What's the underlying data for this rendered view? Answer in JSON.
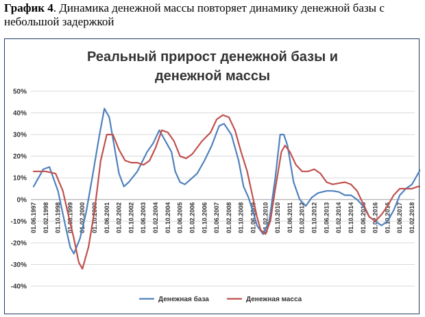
{
  "caption": {
    "bold": "График 4",
    "text": ". Динамика денежной массы повторяет динамику денежной базы с небольшой задержкой"
  },
  "chart_data": {
    "type": "line",
    "title": [
      "Реальный прирост денежной базы и",
      "денежной массы"
    ],
    "xlabel": "",
    "ylabel": "",
    "ylim": [
      -40,
      50
    ],
    "yticks": [
      "50%",
      "40%",
      "30%",
      "20%",
      "10%",
      "0%",
      "-10%",
      "-20%",
      "-30%",
      "-40%"
    ],
    "grid": true,
    "legend_position": "bottom",
    "categories": [
      "01.06.1997",
      "01.02.1998",
      "01.10.1998",
      "01.06.1999",
      "01.02.2000",
      "01.10.2000",
      "01.06.2001",
      "01.02.2002",
      "01.10.2002",
      "01.06.2003",
      "01.02.2004",
      "01.10.2004",
      "01.06.2005",
      "01.02.2006",
      "01.10.2006",
      "01.06.2007",
      "01.02.2008",
      "01.10.2008",
      "01.06.2009",
      "01.02.2010",
      "01.10.2010",
      "01.06.2011",
      "01.02.2012",
      "01.10.2012",
      "01.06.2013",
      "01.02.2014",
      "01.10.2014",
      "01.06.2015",
      "01.02.2016",
      "01.10.2016",
      "01.06.2017",
      "01.02.2018"
    ],
    "series": [
      {
        "name": "Денежная база",
        "color": "#4f81bd",
        "points": [
          [
            0,
            6
          ],
          [
            0.8,
            14
          ],
          [
            1.3,
            15
          ],
          [
            2,
            4
          ],
          [
            2.6,
            -12
          ],
          [
            3,
            -22
          ],
          [
            3.3,
            -25
          ],
          [
            3.8,
            -18
          ],
          [
            4.3,
            -6
          ],
          [
            4.8,
            10
          ],
          [
            5.4,
            30
          ],
          [
            5.8,
            42
          ],
          [
            6.2,
            38
          ],
          [
            6.6,
            25
          ],
          [
            7,
            12
          ],
          [
            7.4,
            6
          ],
          [
            7.8,
            8
          ],
          [
            8.5,
            13
          ],
          [
            9.3,
            22
          ],
          [
            9.8,
            26
          ],
          [
            10.3,
            32
          ],
          [
            10.8,
            27
          ],
          [
            11.3,
            22
          ],
          [
            11.6,
            13
          ],
          [
            12,
            8
          ],
          [
            12.4,
            7
          ],
          [
            12.8,
            9
          ],
          [
            13.4,
            12
          ],
          [
            14,
            18
          ],
          [
            14.6,
            25
          ],
          [
            15.2,
            34
          ],
          [
            15.6,
            35
          ],
          [
            16.2,
            30
          ],
          [
            16.8,
            18
          ],
          [
            17.2,
            6
          ],
          [
            17.6,
            1
          ],
          [
            18,
            -6
          ],
          [
            18.3,
            -12
          ],
          [
            18.8,
            -16
          ],
          [
            19.3,
            -10
          ],
          [
            19.8,
            10
          ],
          [
            20.2,
            30
          ],
          [
            20.5,
            30
          ],
          [
            20.8,
            25
          ],
          [
            21.3,
            8
          ],
          [
            21.8,
            0
          ],
          [
            22.3,
            -3
          ],
          [
            22.8,
            1
          ],
          [
            23.3,
            3
          ],
          [
            24,
            4
          ],
          [
            24.5,
            4
          ],
          [
            25,
            3.5
          ],
          [
            25.5,
            2
          ],
          [
            26,
            2
          ],
          [
            26.5,
            0
          ],
          [
            27,
            -3
          ],
          [
            27.5,
            -8
          ],
          [
            28,
            -10
          ],
          [
            28.5,
            -12
          ],
          [
            29,
            -10
          ],
          [
            29.5,
            -5
          ],
          [
            30,
            2
          ],
          [
            30.5,
            5
          ],
          [
            31,
            7
          ],
          [
            31.6,
            13
          ],
          [
            32,
            16
          ]
        ]
      },
      {
        "name": "Денежная масса",
        "color": "#c0504d",
        "points": [
          [
            0,
            13
          ],
          [
            1,
            13
          ],
          [
            1.8,
            12
          ],
          [
            2.4,
            4
          ],
          [
            2.8,
            -6
          ],
          [
            3.3,
            -18
          ],
          [
            3.7,
            -29
          ],
          [
            4,
            -32
          ],
          [
            4.5,
            -22
          ],
          [
            5,
            -5
          ],
          [
            5.5,
            18
          ],
          [
            6,
            30
          ],
          [
            6.5,
            30
          ],
          [
            7,
            23
          ],
          [
            7.5,
            18
          ],
          [
            8,
            17
          ],
          [
            8.5,
            17
          ],
          [
            9,
            16
          ],
          [
            9.5,
            18
          ],
          [
            10,
            24
          ],
          [
            10.5,
            32
          ],
          [
            11,
            31
          ],
          [
            11.5,
            27
          ],
          [
            12,
            20
          ],
          [
            12.5,
            19
          ],
          [
            13,
            21
          ],
          [
            13.8,
            27
          ],
          [
            14.5,
            31
          ],
          [
            15,
            37
          ],
          [
            15.5,
            39
          ],
          [
            16,
            38
          ],
          [
            16.5,
            32
          ],
          [
            17,
            22
          ],
          [
            17.5,
            13
          ],
          [
            18,
            0
          ],
          [
            18.3,
            -8
          ],
          [
            18.6,
            -14
          ],
          [
            19,
            -16
          ],
          [
            19.4,
            -10
          ],
          [
            19.8,
            5
          ],
          [
            20.3,
            22
          ],
          [
            20.6,
            25
          ],
          [
            21,
            22
          ],
          [
            21.5,
            16
          ],
          [
            22,
            13
          ],
          [
            22.5,
            13
          ],
          [
            23,
            14
          ],
          [
            23.5,
            12
          ],
          [
            24,
            8
          ],
          [
            24.5,
            7
          ],
          [
            25,
            7.5
          ],
          [
            25.5,
            8
          ],
          [
            26,
            7
          ],
          [
            26.5,
            4
          ],
          [
            27,
            -2
          ],
          [
            27.5,
            -8
          ],
          [
            28,
            -10
          ],
          [
            28.5,
            -7
          ],
          [
            29,
            -3
          ],
          [
            29.5,
            2
          ],
          [
            30,
            5
          ],
          [
            30.5,
            5
          ],
          [
            31,
            5
          ],
          [
            31.5,
            6
          ],
          [
            32,
            6
          ]
        ]
      }
    ]
  }
}
